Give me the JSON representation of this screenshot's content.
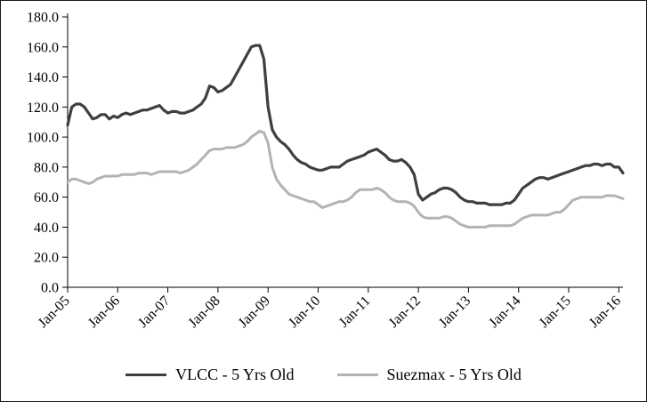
{
  "chart_data": {
    "type": "line",
    "title": "",
    "xlabel": "",
    "ylabel": "",
    "ylim": [
      0,
      180
    ],
    "y_step": 20,
    "grid": false,
    "legend_position": "bottom",
    "y_tick_labels": [
      "0.0",
      "20.0",
      "40.0",
      "60.0",
      "80.0",
      "100.0",
      "120.0",
      "140.0",
      "160.0",
      "180.0"
    ],
    "x_tick_labels": [
      "Jan-05",
      "Jan-06",
      "Jan-07",
      "Jan-08",
      "Jan-09",
      "Jan-10",
      "Jan-11",
      "Jan-12",
      "Jan-13",
      "Jan-14",
      "Jan-15",
      "Jan-16"
    ],
    "x_frequency": "monthly",
    "series": [
      {
        "name": "VLCC - 5 Yrs Old",
        "color": "#3f3f3f",
        "width": 3.2,
        "values": [
          108,
          120,
          122,
          122,
          120,
          116,
          112,
          113,
          115,
          115,
          112,
          114,
          113,
          115,
          116,
          115,
          116,
          117,
          118,
          118,
          119,
          120,
          121,
          118,
          116,
          117,
          117,
          116,
          116,
          117,
          118,
          120,
          122,
          126,
          134,
          133,
          130,
          131,
          133,
          135,
          140,
          145,
          150,
          155,
          160,
          161,
          161,
          152,
          120,
          105,
          100,
          97,
          95,
          92,
          88,
          85,
          83,
          82,
          80,
          79,
          78,
          78,
          79,
          80,
          80,
          80,
          82,
          84,
          85,
          86,
          87,
          88,
          90,
          91,
          92,
          90,
          88,
          85,
          84,
          84,
          85,
          83,
          80,
          75,
          62,
          58,
          60,
          62,
          63,
          65,
          66,
          66,
          65,
          63,
          60,
          58,
          57,
          57,
          56,
          56,
          56,
          55,
          55,
          55,
          55,
          56,
          56,
          58,
          62,
          66,
          68,
          70,
          72,
          73,
          73,
          72,
          73,
          74,
          75,
          76,
          77,
          78,
          79,
          80,
          81,
          81,
          82,
          82,
          81,
          82,
          82,
          80,
          80,
          76
        ]
      },
      {
        "name": "Suezmax - 5 Yrs Old",
        "color": "#b3b3b3",
        "width": 3,
        "values": [
          70,
          72,
          72,
          71,
          70,
          69,
          70,
          72,
          73,
          74,
          74,
          74,
          74,
          75,
          75,
          75,
          75,
          76,
          76,
          76,
          75,
          76,
          77,
          77,
          77,
          77,
          77,
          76,
          77,
          78,
          80,
          82,
          85,
          88,
          91,
          92,
          92,
          92,
          93,
          93,
          93,
          94,
          95,
          97,
          100,
          102,
          104,
          103,
          96,
          80,
          72,
          68,
          65,
          62,
          61,
          60,
          59,
          58,
          57,
          57,
          55,
          53,
          54,
          55,
          56,
          57,
          57,
          58,
          60,
          63,
          65,
          65,
          65,
          65,
          66,
          65,
          63,
          60,
          58,
          57,
          57,
          57,
          56,
          54,
          50,
          47,
          46,
          46,
          46,
          46,
          47,
          47,
          46,
          44,
          42,
          41,
          40,
          40,
          40,
          40,
          40,
          41,
          41,
          41,
          41,
          41,
          41,
          42,
          44,
          46,
          47,
          48,
          48,
          48,
          48,
          48,
          49,
          50,
          50,
          52,
          55,
          58,
          59,
          60,
          60,
          60,
          60,
          60,
          60,
          61,
          61,
          61,
          60,
          59
        ]
      }
    ]
  }
}
